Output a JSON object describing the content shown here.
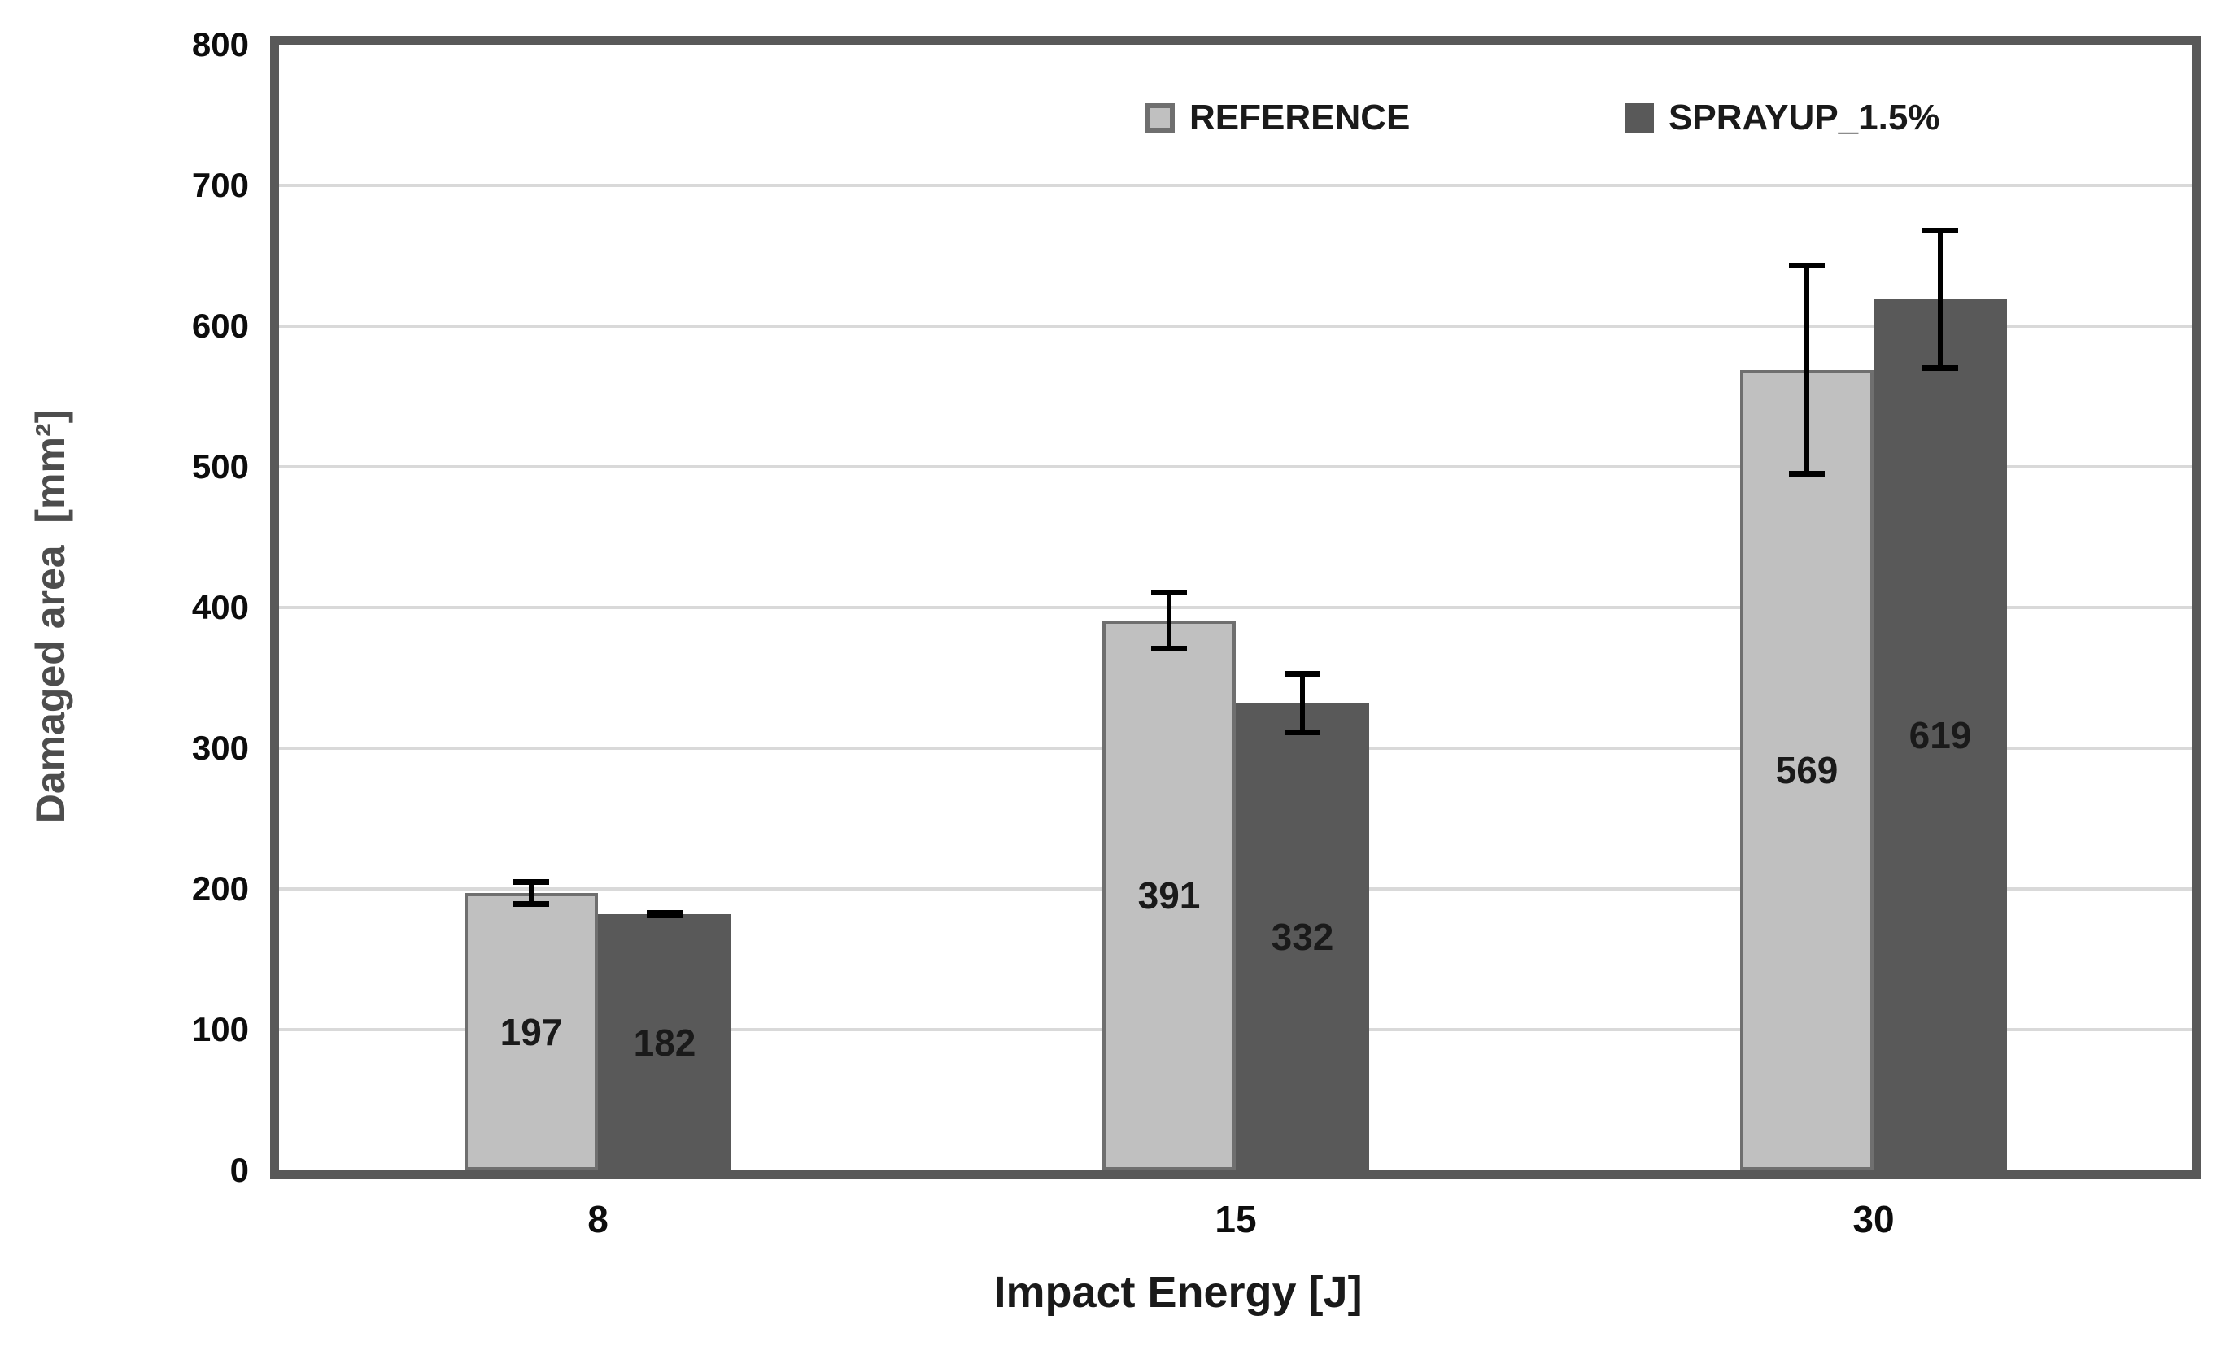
{
  "chart_data": {
    "type": "bar",
    "title": "",
    "xlabel": "Impact Energy [J]",
    "ylabel": "Damaged area  [mm²]",
    "categories": [
      "8",
      "15",
      "30"
    ],
    "series": [
      {
        "name": "REFERENCE",
        "values": [
          197,
          391,
          569
        ],
        "errors": [
          10,
          22,
          76
        ],
        "fill": "#c0c0c0",
        "border": "#6f6f6f",
        "swatch_fill": "#c0c0c0",
        "swatch_border": "#6f6f6f"
      },
      {
        "name": "SPRAYUP_1.5%",
        "values": [
          182,
          332,
          619
        ],
        "errors": [
          3,
          23,
          51
        ],
        "fill": "#595959",
        "border": "#595959",
        "swatch_fill": "#595959",
        "swatch_border": "#595959"
      }
    ],
    "ylim": [
      0,
      800
    ],
    "ytick_step": 100,
    "grid": true,
    "legend_position": "top-inside",
    "error_bars": true,
    "data_labels_position": "middle",
    "colors": {
      "axis_frame": "#595959",
      "gridline": "#d9d9d9",
      "error_bar": "#000000",
      "tick_text": "#0d0d0d",
      "y_title_text": "#4d4d4d",
      "x_title_text": "#1a1a1a",
      "data_label_text": "#1a1a1a",
      "background": "#ffffff"
    }
  }
}
